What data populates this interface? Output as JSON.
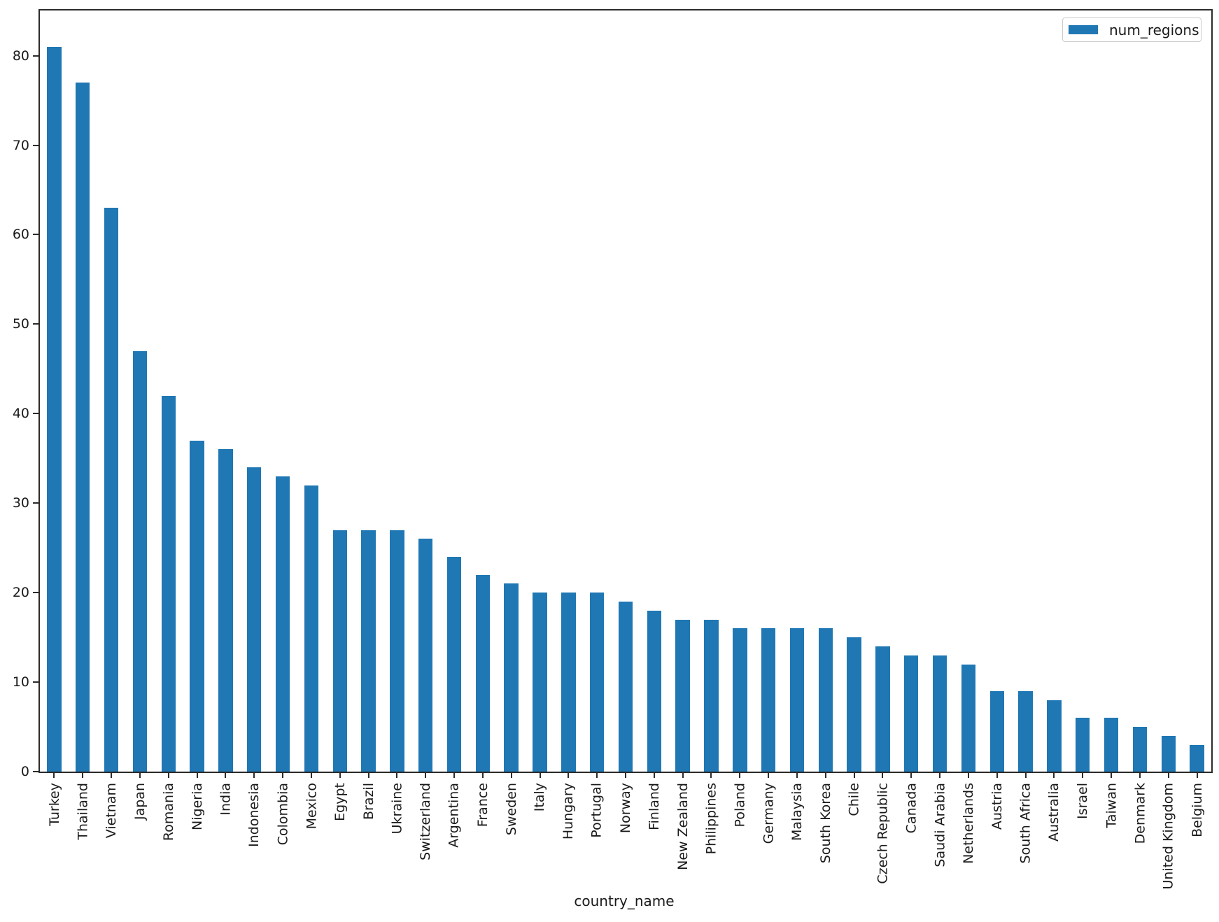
{
  "chart_data": {
    "type": "bar",
    "title": "",
    "xlabel": "country_name",
    "ylabel": "",
    "legend": {
      "label": "num_regions",
      "position": "upper right"
    },
    "bar_color": "#1f77b4",
    "axis_color": "#2b2b2b",
    "grid": false,
    "x_tick_rotation": 90,
    "bar_width_fraction": 0.5,
    "ylim": [
      0,
      85
    ],
    "yticks": [
      0,
      10,
      20,
      30,
      40,
      50,
      60,
      70,
      80
    ],
    "categories": [
      "Turkey",
      "Thailand",
      "Vietnam",
      "Japan",
      "Romania",
      "Nigeria",
      "India",
      "Indonesia",
      "Colombia",
      "Mexico",
      "Egypt",
      "Brazil",
      "Ukraine",
      "Switzerland",
      "Argentina",
      "France",
      "Sweden",
      "Italy",
      "Hungary",
      "Portugal",
      "Norway",
      "Finland",
      "New Zealand",
      "Philippines",
      "Poland",
      "Germany",
      "Malaysia",
      "South Korea",
      "Chile",
      "Czech Republic",
      "Canada",
      "Saudi Arabia",
      "Netherlands",
      "Austria",
      "South Africa",
      "Australia",
      "Israel",
      "Taiwan",
      "Denmark",
      "United Kingdom",
      "Belgium"
    ],
    "values": [
      81,
      77,
      63,
      47,
      42,
      37,
      36,
      34,
      33,
      32,
      27,
      27,
      27,
      26,
      24,
      22,
      21,
      20,
      20,
      20,
      19,
      18,
      17,
      17,
      16,
      16,
      16,
      16,
      15,
      14,
      13,
      13,
      12,
      9,
      9,
      8,
      6,
      6,
      5,
      4,
      3
    ]
  }
}
